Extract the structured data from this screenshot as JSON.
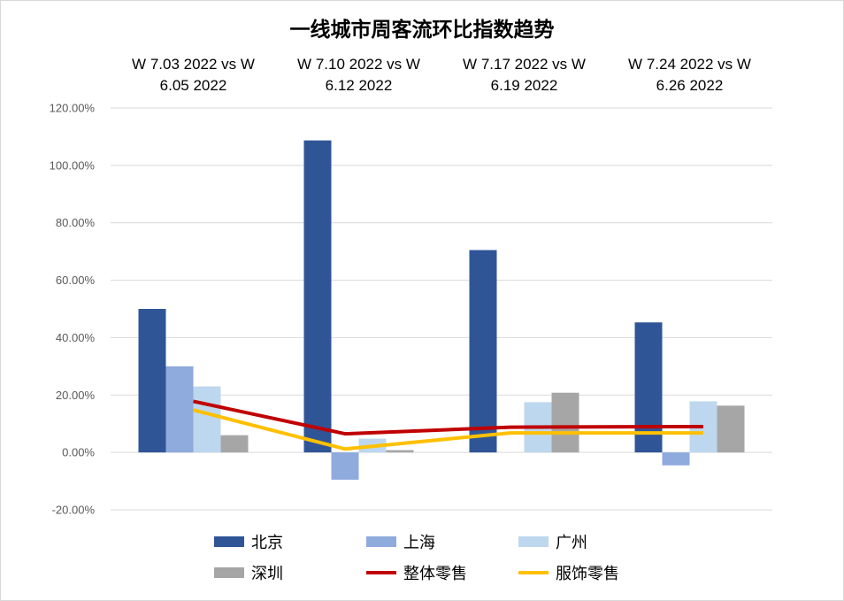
{
  "chart_data": {
    "type": "bar",
    "title": "一线城市周客流环比指数趋势",
    "categories": [
      [
        "W 7.03 2022  vs W",
        "6.05 2022"
      ],
      [
        "W 7.10 2022  vs W",
        "6.12 2022"
      ],
      [
        "W 7.17 2022  vs W",
        "6.19 2022"
      ],
      [
        "W 7.24 2022  vs W",
        "6.26 2022"
      ]
    ],
    "ylim": [
      -20,
      120
    ],
    "yticks": [
      -20,
      0,
      20,
      40,
      60,
      80,
      100,
      120
    ],
    "ytick_labels": [
      "-20.00%",
      "0.00%",
      "20.00%",
      "40.00%",
      "60.00%",
      "80.00%",
      "100.00%",
      "120.00%"
    ],
    "grid": true,
    "legend_position": "bottom",
    "bar_series": [
      {
        "name": "北京",
        "color": "#2f5597",
        "values": [
          50.0,
          108.7,
          70.5,
          45.3
        ]
      },
      {
        "name": "上海",
        "color": "#8faadc",
        "values": [
          30.0,
          -9.5,
          0.0,
          -4.5
        ]
      },
      {
        "name": "广州",
        "color": "#bdd7ee",
        "values": [
          23.0,
          4.8,
          17.5,
          17.8
        ]
      },
      {
        "name": "深圳",
        "color": "#a6a6a6",
        "values": [
          6.0,
          0.8,
          20.8,
          16.3
        ]
      }
    ],
    "line_series": [
      {
        "name": "整体零售",
        "color": "#c00000",
        "values": [
          17.8,
          6.5,
          8.8,
          9.0
        ]
      },
      {
        "name": "服饰零售",
        "color": "#ffc000",
        "values": [
          14.8,
          1.2,
          6.8,
          6.8
        ]
      }
    ]
  }
}
